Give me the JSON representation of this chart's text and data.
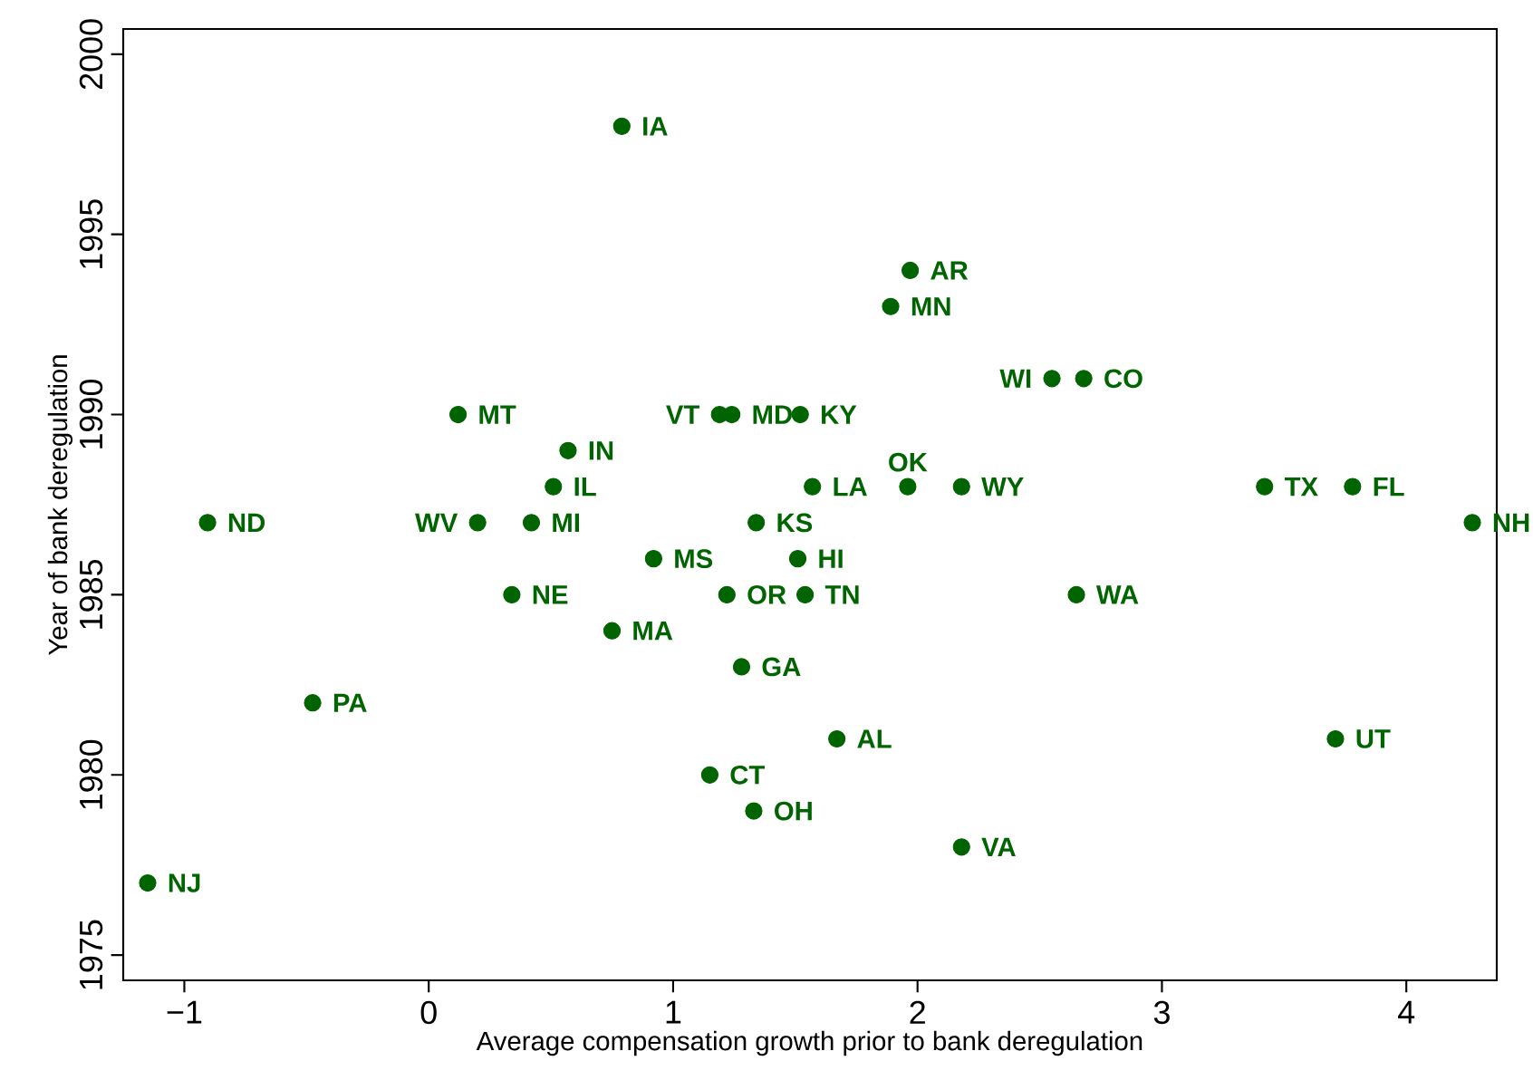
{
  "chart_data": {
    "type": "scatter",
    "xlabel": "Average compensation growth prior to bank deregulation",
    "ylabel": "Year of bank deregulation",
    "xlim": [
      -1.25,
      4.37
    ],
    "ylim": [
      1974.3,
      2000.7
    ],
    "xticks": [
      {
        "value": -1,
        "label": "−1"
      },
      0,
      1,
      2,
      3,
      4
    ],
    "yticks": [
      1975,
      1980,
      1985,
      1990,
      1995,
      2000
    ],
    "grid": false,
    "legend": false,
    "marker": "circle",
    "series": [
      {
        "color": "#006400",
        "x": [
          -1.15,
          -0.905,
          -0.475,
          0.12,
          0.2,
          0.42,
          0.34,
          0.57,
          0.51,
          0.75,
          0.79,
          0.92,
          1.15,
          1.22,
          1.19,
          1.24,
          1.52,
          1.34,
          1.57,
          1.51,
          1.54,
          1.28,
          1.33,
          1.67,
          1.97,
          1.89,
          1.96,
          2.18,
          2.18,
          2.55,
          2.68,
          2.65,
          3.42,
          3.78,
          3.71,
          4.27
        ],
        "values": [
          1977,
          1987,
          1982,
          1990,
          1987,
          1987,
          1985,
          1989,
          1988,
          1984,
          1998,
          1986,
          1980,
          1985,
          1990,
          1990,
          1990,
          1987,
          1988,
          1986,
          1985,
          1983,
          1979,
          1981,
          1994,
          1993,
          1988,
          1988,
          1978,
          1991,
          1991,
          1985,
          1988,
          1988,
          1981,
          1987
        ]
      }
    ],
    "annotations": [
      {
        "text": "NJ",
        "x": -1.15,
        "y": 1977
      },
      {
        "text": "ND",
        "x": -0.905,
        "y": 1987
      },
      {
        "text": "PA",
        "x": -0.475,
        "y": 1982
      },
      {
        "text": "MT",
        "x": 0.12,
        "y": 1990
      },
      {
        "text": "WV",
        "x": 0.2,
        "y": 1987
      },
      {
        "text": "MI",
        "x": 0.42,
        "y": 1987
      },
      {
        "text": "NE",
        "x": 0.34,
        "y": 1985
      },
      {
        "text": "IN",
        "x": 0.57,
        "y": 1989
      },
      {
        "text": "IL",
        "x": 0.51,
        "y": 1988
      },
      {
        "text": "MA",
        "x": 0.75,
        "y": 1984
      },
      {
        "text": "IA",
        "x": 0.79,
        "y": 1998
      },
      {
        "text": "MS",
        "x": 0.92,
        "y": 1986
      },
      {
        "text": "CT",
        "x": 1.15,
        "y": 1980
      },
      {
        "text": "OR",
        "x": 1.22,
        "y": 1985
      },
      {
        "text": "VT",
        "x": 1.19,
        "y": 1990
      },
      {
        "text": "MD",
        "x": 1.24,
        "y": 1990
      },
      {
        "text": "KY",
        "x": 1.52,
        "y": 1990
      },
      {
        "text": "KS",
        "x": 1.34,
        "y": 1987
      },
      {
        "text": "LA",
        "x": 1.57,
        "y": 1988
      },
      {
        "text": "HI",
        "x": 1.51,
        "y": 1986
      },
      {
        "text": "TN",
        "x": 1.54,
        "y": 1985
      },
      {
        "text": "GA",
        "x": 1.28,
        "y": 1983
      },
      {
        "text": "OH",
        "x": 1.33,
        "y": 1979
      },
      {
        "text": "AL",
        "x": 1.67,
        "y": 1981
      },
      {
        "text": "AR",
        "x": 1.97,
        "y": 1994
      },
      {
        "text": "MN",
        "x": 1.89,
        "y": 1993
      },
      {
        "text": "OK",
        "x": 1.96,
        "y": 1988
      },
      {
        "text": "WY",
        "x": 2.18,
        "y": 1988
      },
      {
        "text": "VA",
        "x": 2.18,
        "y": 1978
      },
      {
        "text": "WI",
        "x": 2.55,
        "y": 1991
      },
      {
        "text": "CO",
        "x": 2.68,
        "y": 1991
      },
      {
        "text": "WA",
        "x": 2.65,
        "y": 1985
      },
      {
        "text": "TX",
        "x": 3.42,
        "y": 1988
      },
      {
        "text": "FL",
        "x": 3.78,
        "y": 1988
      },
      {
        "text": "UT",
        "x": 3.71,
        "y": 1981
      },
      {
        "text": "NH",
        "x": 4.27,
        "y": 1987
      }
    ]
  }
}
